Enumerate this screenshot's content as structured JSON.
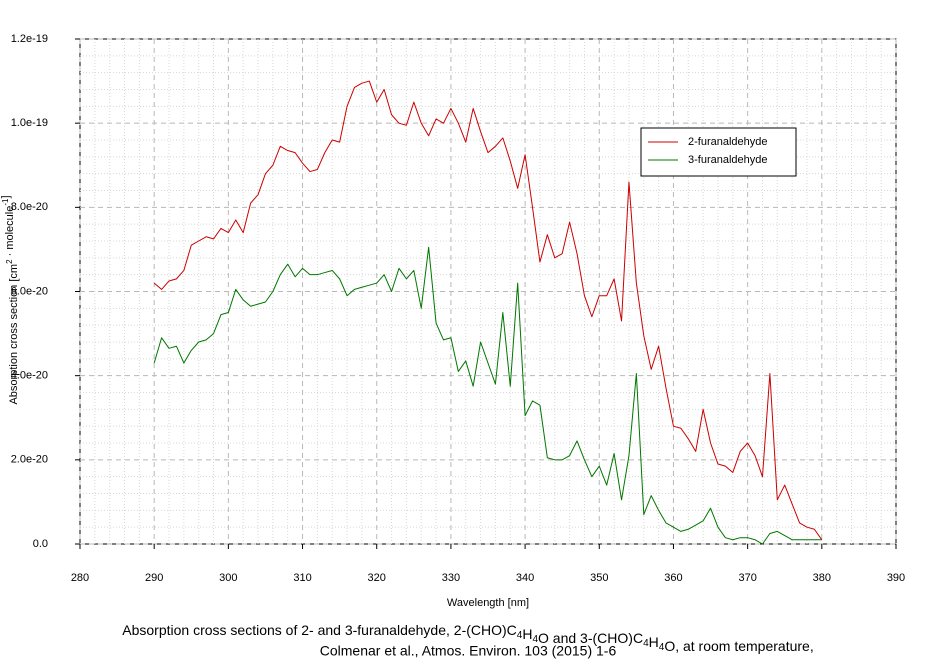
{
  "chart_data": {
    "type": "line",
    "x_label": "Wavelength [nm]",
    "y_label": "Absorption cross section [cm2 · molecule-1]",
    "caption": [
      "Absorption cross sections of 2- and 3-furanaldehyde, 2-(CHO)C4H4O and 3-(CHO)C4H4O, at room temperature,",
      "Colmenar et al., Atmos. Environ. 103 (2015) 1-6"
    ],
    "xlim": [
      280,
      390
    ],
    "xticks": [
      280,
      290,
      300,
      310,
      320,
      330,
      340,
      350,
      360,
      370,
      380,
      390
    ],
    "ylim": [
      0,
      1.2e-19
    ],
    "yticks": [
      {
        "value": 0,
        "label": "0.0"
      },
      {
        "value": 2e-20,
        "label": "2.0e-20"
      },
      {
        "value": 4e-20,
        "label": "4.0e-20"
      },
      {
        "value": 6e-20,
        "label": "6.0e-20"
      },
      {
        "value": 8e-20,
        "label": "8.0e-20"
      },
      {
        "value": 1e-19,
        "label": "1.0e-19"
      },
      {
        "value": 1.2e-19,
        "label": "1.2e-19"
      }
    ],
    "grid": true,
    "legend": "upper right",
    "x": [
      290,
      291,
      292,
      293,
      294,
      295,
      296,
      297,
      298,
      299,
      300,
      301,
      302,
      303,
      304,
      305,
      306,
      307,
      308,
      309,
      310,
      311,
      312,
      313,
      314,
      315,
      316,
      317,
      318,
      319,
      320,
      321,
      322,
      323,
      324,
      325,
      326,
      327,
      328,
      329,
      330,
      331,
      332,
      333,
      334,
      335,
      336,
      337,
      338,
      339,
      340,
      341,
      342,
      343,
      344,
      345,
      346,
      347,
      348,
      349,
      350,
      351,
      352,
      353,
      354,
      355,
      356,
      357,
      358,
      359,
      360,
      361,
      362,
      363,
      364,
      365,
      366,
      367,
      368,
      369,
      370,
      371,
      372,
      373,
      374,
      375,
      376,
      377,
      378,
      379,
      380
    ],
    "series": [
      {
        "name": "2-furanaldehyde",
        "color": "#cc0000",
        "values": [
          6.2e-20,
          6.05e-20,
          6.25e-20,
          6.3e-20,
          6.5e-20,
          7.1e-20,
          7.2e-20,
          7.3e-20,
          7.25e-20,
          7.5e-20,
          7.4e-20,
          7.7e-20,
          7.4e-20,
          8.1e-20,
          8.3e-20,
          8.8e-20,
          9e-20,
          9.45e-20,
          9.35e-20,
          9.3e-20,
          9.05e-20,
          8.85e-20,
          8.9e-20,
          9.3e-20,
          9.6e-20,
          9.55e-20,
          1.04e-19,
          1.085e-19,
          1.095e-19,
          1.1e-19,
          1.05e-19,
          1.08e-19,
          1.02e-19,
          1e-19,
          9.95e-20,
          1.05e-19,
          1e-19,
          9.7e-20,
          1.01e-19,
          1e-19,
          1.035e-19,
          1e-19,
          9.55e-20,
          1.035e-19,
          9.8e-20,
          9.3e-20,
          9.45e-20,
          9.65e-20,
          9.1e-20,
          8.45e-20,
          9.25e-20,
          8e-20,
          6.7e-20,
          7.35e-20,
          6.8e-20,
          6.9e-20,
          7.65e-20,
          6.9e-20,
          5.9e-20,
          5.4e-20,
          5.9e-20,
          5.9e-20,
          6.3e-20,
          5.3e-20,
          8.6e-20,
          6.2e-20,
          4.95e-20,
          4.15e-20,
          4.7e-20,
          3.7e-20,
          2.8e-20,
          2.75e-20,
          2.5e-20,
          2.2e-20,
          3.2e-20,
          2.4e-20,
          1.9e-20,
          1.85e-20,
          1.7e-20,
          2.2e-20,
          2.4e-20,
          2.1e-20,
          1.6e-20,
          4.05e-20,
          1.05e-20,
          1.4e-20,
          9.5e-21,
          5e-21,
          4e-21,
          3.5e-21,
          1e-21
        ]
      },
      {
        "name": "3-furanaldehyde",
        "color": "#007700",
        "values": [
          4.3e-20,
          4.9e-20,
          4.65e-20,
          4.7e-20,
          4.3e-20,
          4.6e-20,
          4.8e-20,
          4.85e-20,
          5e-20,
          5.45e-20,
          5.5e-20,
          6.05e-20,
          5.8e-20,
          5.65e-20,
          5.7e-20,
          5.75e-20,
          6e-20,
          6.4e-20,
          6.65e-20,
          6.35e-20,
          6.55e-20,
          6.4e-20,
          6.4e-20,
          6.45e-20,
          6.5e-20,
          6.3e-20,
          5.9e-20,
          6.05e-20,
          6.1e-20,
          6.15e-20,
          6.2e-20,
          6.4e-20,
          6e-20,
          6.55e-20,
          6.3e-20,
          6.5e-20,
          5.6e-20,
          7.05e-20,
          5.25e-20,
          4.85e-20,
          4.9e-20,
          4.1e-20,
          4.35e-20,
          3.75e-20,
          4.8e-20,
          4.3e-20,
          3.8e-20,
          5.5e-20,
          3.75e-20,
          6.2e-20,
          3.05e-20,
          3.4e-20,
          3.3e-20,
          2.05e-20,
          2e-20,
          2e-20,
          2.1e-20,
          2.45e-20,
          2e-20,
          1.6e-20,
          1.85e-20,
          1.4e-20,
          2.15e-20,
          1.05e-20,
          2.1e-20,
          4.05e-20,
          7e-21,
          1.15e-20,
          8e-21,
          5e-21,
          4e-21,
          3e-21,
          3.5e-21,
          4.5e-21,
          5.5e-21,
          8.5e-21,
          4e-21,
          1.5e-21,
          1e-21,
          1.5e-21,
          1.5e-21,
          1e-21,
          0,
          2.5e-21,
          3e-21,
          2e-21,
          1e-21,
          1e-21,
          1e-21,
          1e-21,
          1e-21
        ]
      }
    ]
  }
}
